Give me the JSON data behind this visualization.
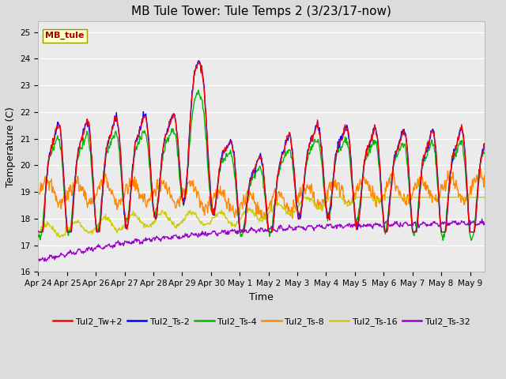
{
  "title": "MB Tule Tower: Tule Temps 2 (3/23/17-now)",
  "xlabel": "Time",
  "ylabel": "Temperature (C)",
  "ylim": [
    16.0,
    25.4
  ],
  "yticks": [
    16.0,
    17.0,
    18.0,
    19.0,
    20.0,
    21.0,
    22.0,
    23.0,
    24.0,
    25.0
  ],
  "fig_bg": "#dcdcdc",
  "plot_bg": "#ebebeb",
  "grid_color": "#ffffff",
  "legend_label": "MB_tule",
  "legend_box_facecolor": "#ffffcc",
  "legend_box_edgecolor": "#999900",
  "series_colors": {
    "Tul2_Tw+2": "#ff0000",
    "Tul2_Ts-2": "#0000ff",
    "Tul2_Ts-4": "#00bb00",
    "Tul2_Ts-8": "#ff8800",
    "Tul2_Ts-16": "#cccc00",
    "Tul2_Ts-32": "#9900cc"
  },
  "x_tick_labels": [
    "Apr 24",
    "Apr 25",
    "Apr 26",
    "Apr 27",
    "Apr 28",
    "Apr 29",
    "Apr 30",
    "May 1",
    "May 2",
    "May 3",
    "May 4",
    "May 5",
    "May 6",
    "May 7",
    "May 8",
    "May 9"
  ],
  "linewidth": 1.0,
  "title_fontsize": 11,
  "axis_fontsize": 9,
  "tick_fontsize": 7.5,
  "legend_fontsize": 8
}
